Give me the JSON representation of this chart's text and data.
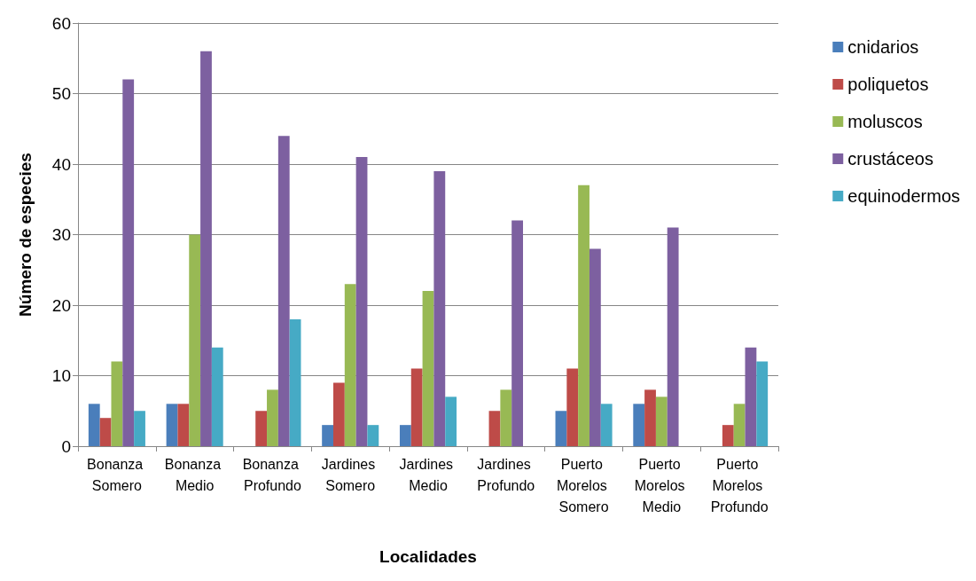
{
  "chart_data": {
    "type": "bar",
    "xlabel": "Localidades",
    "ylabel": "Número de especies",
    "categories": [
      "Bonanza Somero",
      "Bonanza Medio",
      "Bonanza Profundo",
      "Jardines Somero",
      "Jardines Medio",
      "Jardines Profundo",
      "Puerto Morelos Somero",
      "Puerto Morelos Medio",
      "Puerto Morelos Profundo"
    ],
    "series": [
      {
        "name": "cnidarios",
        "color": "#4a7ebb",
        "values": [
          6,
          6,
          0,
          3,
          3,
          0,
          5,
          6,
          0
        ]
      },
      {
        "name": "poliquetos",
        "color": "#be4b48",
        "values": [
          4,
          6,
          5,
          9,
          11,
          5,
          11,
          8,
          3
        ]
      },
      {
        "name": "moluscos",
        "color": "#98b954",
        "values": [
          12,
          30,
          8,
          23,
          22,
          8,
          37,
          7,
          6
        ]
      },
      {
        "name": "crustáceos",
        "color": "#7d60a0",
        "values": [
          52,
          56,
          44,
          41,
          39,
          32,
          28,
          31,
          14
        ]
      },
      {
        "name": "equinodermos",
        "color": "#46aac5",
        "values": [
          5,
          14,
          18,
          3,
          7,
          0,
          6,
          0,
          12
        ]
      }
    ],
    "ylim": [
      0,
      60
    ],
    "yticks": [
      0,
      10,
      20,
      30,
      40,
      50,
      60
    ],
    "grid": "y",
    "legend": "right"
  }
}
